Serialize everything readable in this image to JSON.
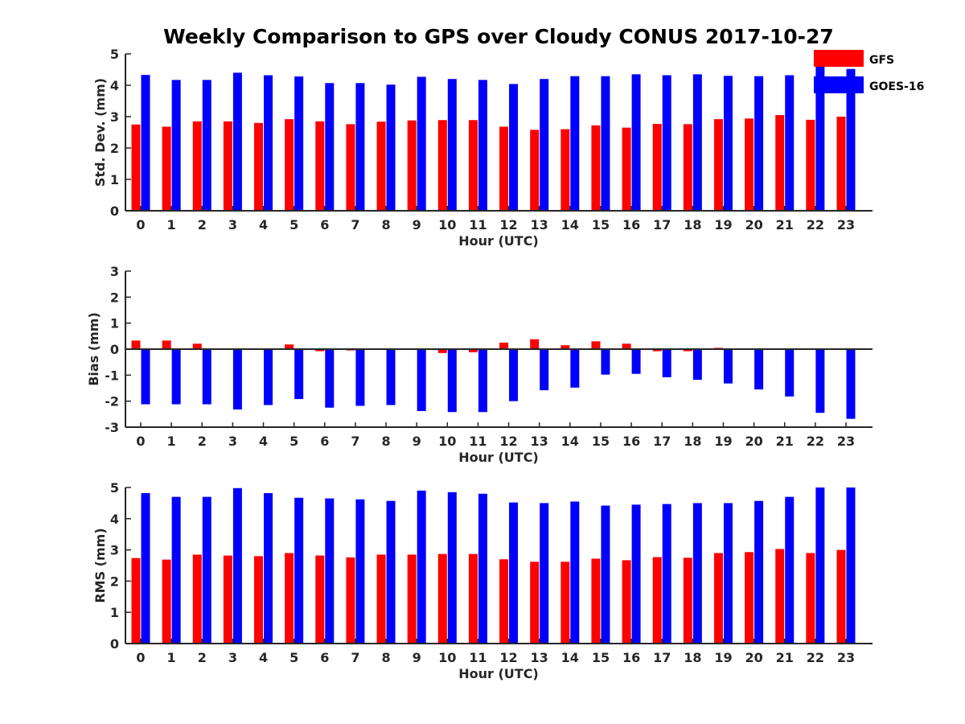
{
  "title": "Weekly Comparison to GPS over Cloudy CONUS 2017-10-27",
  "legend": [
    {
      "label": "GFS",
      "color": "#ff0000"
    },
    {
      "label": "GOES-16",
      "color": "#0000ff"
    }
  ],
  "chart_data": [
    {
      "type": "bar",
      "xlabel": "Hour (UTC)",
      "ylabel": "Std. Dev. (mm)",
      "ylim": [
        0,
        5
      ],
      "yticks": [
        0,
        1,
        2,
        3,
        4,
        5
      ],
      "categories": [
        "0",
        "1",
        "2",
        "3",
        "4",
        "5",
        "6",
        "7",
        "8",
        "9",
        "10",
        "11",
        "12",
        "13",
        "14",
        "15",
        "16",
        "17",
        "18",
        "19",
        "20",
        "21",
        "22",
        "23"
      ],
      "series": [
        {
          "name": "GFS",
          "color": "#ff0000",
          "values": [
            2.75,
            2.68,
            2.85,
            2.85,
            2.8,
            2.92,
            2.85,
            2.76,
            2.84,
            2.88,
            2.89,
            2.89,
            2.68,
            2.58,
            2.6,
            2.72,
            2.65,
            2.77,
            2.76,
            2.92,
            2.94,
            3.05,
            2.9,
            3.0
          ]
        },
        {
          "name": "GOES-16",
          "color": "#0000ff",
          "values": [
            4.33,
            4.17,
            4.17,
            4.4,
            4.32,
            4.28,
            4.07,
            4.07,
            4.02,
            4.27,
            4.2,
            4.17,
            4.04,
            4.2,
            4.29,
            4.29,
            4.35,
            4.32,
            4.35,
            4.3,
            4.29,
            4.32,
            4.62,
            4.52
          ]
        }
      ]
    },
    {
      "type": "bar",
      "xlabel": "Hour (UTC)",
      "ylabel": "Bias (mm)",
      "ylim": [
        -3,
        3
      ],
      "yticks": [
        -3,
        -2,
        -1,
        0,
        1,
        2,
        3
      ],
      "categories": [
        "0",
        "1",
        "2",
        "3",
        "4",
        "5",
        "6",
        "7",
        "8",
        "9",
        "10",
        "11",
        "12",
        "13",
        "14",
        "15",
        "16",
        "17",
        "18",
        "19",
        "20",
        "21",
        "22",
        "23"
      ],
      "series": [
        {
          "name": "GFS",
          "color": "#ff0000",
          "values": [
            0.33,
            0.33,
            0.21,
            0.0,
            -0.02,
            0.18,
            -0.08,
            -0.05,
            0.0,
            0.0,
            -0.15,
            -0.12,
            0.25,
            0.38,
            0.15,
            0.3,
            0.21,
            -0.08,
            -0.08,
            0.05,
            0.0,
            0.02,
            0.0,
            0.0
          ]
        },
        {
          "name": "GOES-16",
          "color": "#0000ff",
          "values": [
            -2.12,
            -2.12,
            -2.12,
            -2.32,
            -2.15,
            -1.92,
            -2.25,
            -2.18,
            -2.15,
            -2.38,
            -2.42,
            -2.42,
            -2.0,
            -1.58,
            -1.48,
            -0.98,
            -0.95,
            -1.08,
            -1.18,
            -1.32,
            -1.55,
            -1.82,
            -2.45,
            -2.68
          ]
        }
      ]
    },
    {
      "type": "bar",
      "xlabel": "Hour (UTC)",
      "ylabel": "RMS (mm)",
      "ylim": [
        0,
        5
      ],
      "yticks": [
        0,
        1,
        2,
        3,
        4,
        5
      ],
      "categories": [
        "0",
        "1",
        "2",
        "3",
        "4",
        "5",
        "6",
        "7",
        "8",
        "9",
        "10",
        "11",
        "12",
        "13",
        "14",
        "15",
        "16",
        "17",
        "18",
        "19",
        "20",
        "21",
        "22",
        "23"
      ],
      "series": [
        {
          "name": "GFS",
          "color": "#ff0000",
          "values": [
            2.74,
            2.69,
            2.85,
            2.82,
            2.8,
            2.9,
            2.82,
            2.76,
            2.85,
            2.85,
            2.87,
            2.87,
            2.7,
            2.62,
            2.62,
            2.72,
            2.67,
            2.77,
            2.75,
            2.9,
            2.93,
            3.03,
            2.9,
            3.0
          ]
        },
        {
          "name": "GOES-16",
          "color": "#0000ff",
          "values": [
            4.82,
            4.7,
            4.7,
            4.98,
            4.82,
            4.67,
            4.65,
            4.62,
            4.57,
            4.9,
            4.85,
            4.8,
            4.52,
            4.5,
            4.55,
            4.42,
            4.45,
            4.47,
            4.5,
            4.5,
            4.57,
            4.7,
            5.0,
            5.0
          ]
        }
      ]
    }
  ]
}
